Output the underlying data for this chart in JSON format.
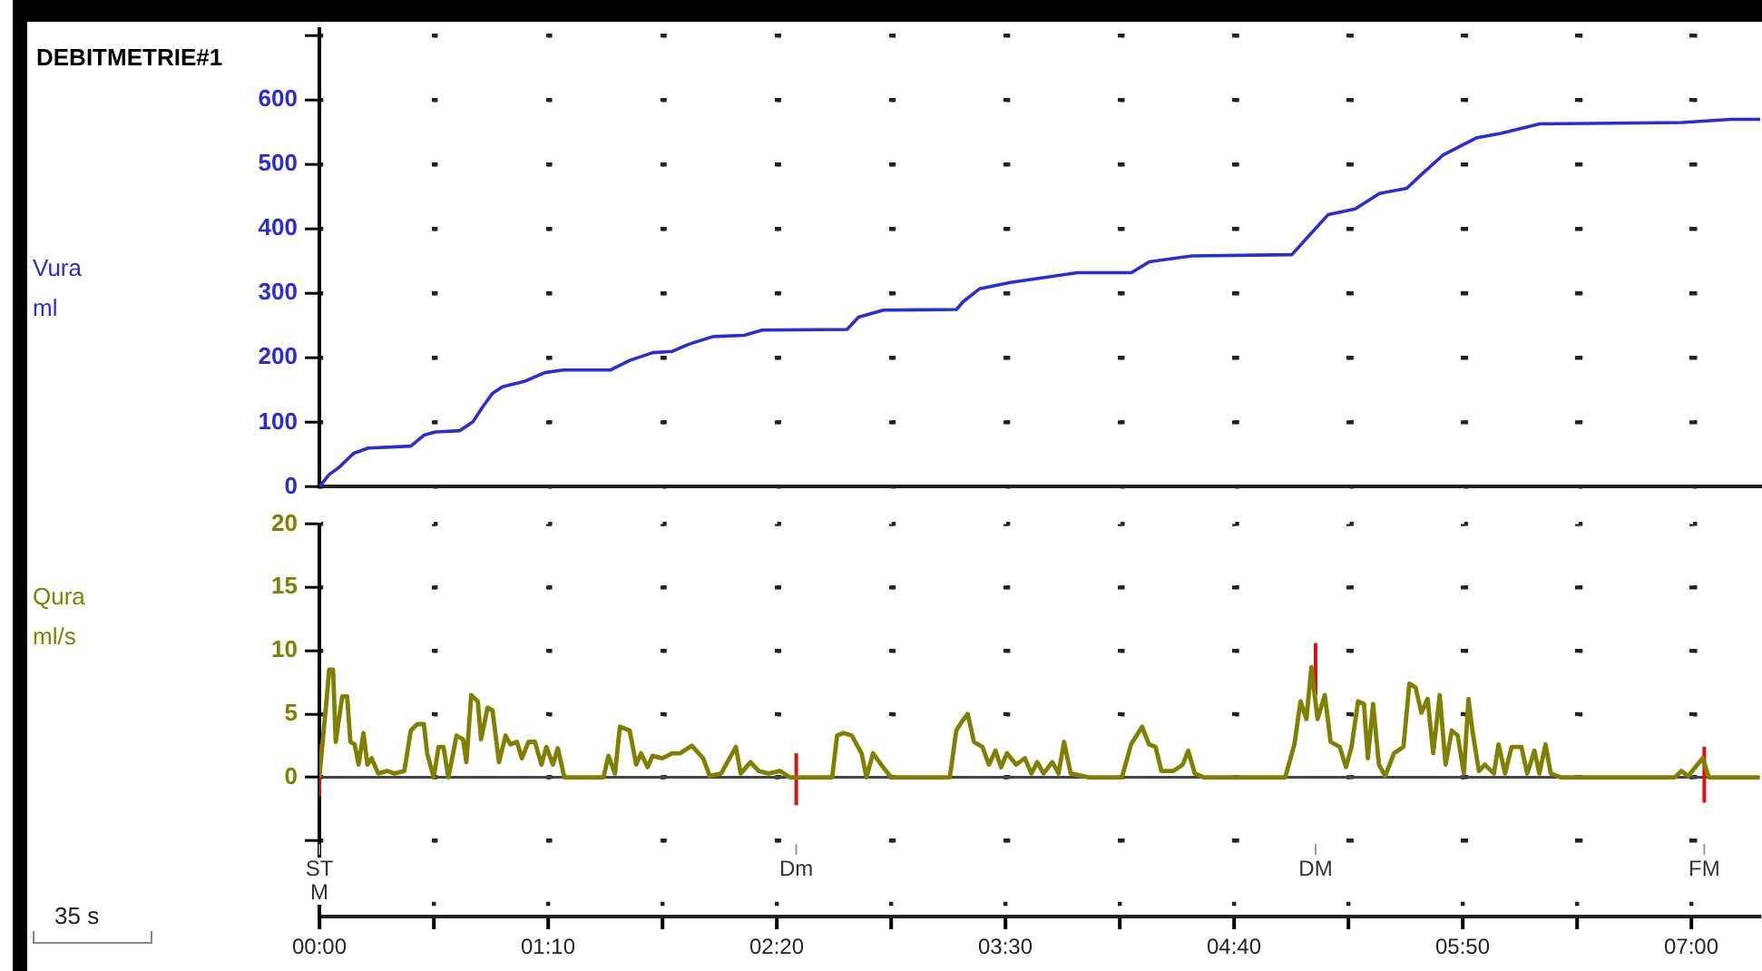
{
  "chart_data": [
    {
      "type": "line",
      "title": "DEBITMETRIE#1",
      "ylabel": "Vura ml",
      "color": "#2b2bd9",
      "marker": "none",
      "grid": true,
      "tick_labels": "y",
      "x": [
        0,
        3,
        6,
        10.5,
        15,
        28,
        32,
        35.5,
        43,
        47,
        50,
        53,
        56,
        63,
        69,
        74.5,
        89,
        95,
        102,
        108,
        113,
        120.5,
        130,
        135.5,
        161.5,
        165,
        172.6,
        195,
        197,
        202,
        211.5,
        232,
        248.5,
        254,
        267,
        297.6,
        308.7,
        317,
        324.4,
        332.8,
        337.4,
        344,
        354,
        361.5,
        373.5,
        417,
        432,
        441
      ],
      "values": [
        0,
        19,
        30,
        52,
        60,
        63,
        80,
        85,
        87,
        101,
        124,
        145,
        155,
        164,
        177,
        181,
        181,
        196,
        208,
        210,
        221,
        233,
        235,
        243,
        244,
        263,
        274,
        275,
        287,
        307,
        317,
        332,
        332,
        349,
        358,
        360,
        422,
        431,
        455,
        463,
        485,
        515,
        541,
        548,
        563,
        565,
        570,
        570
      ],
      "xlim": [
        0,
        441
      ],
      "xticks": [
        {
          "value": 0,
          "label": null
        },
        {
          "value": 35,
          "label": null
        },
        {
          "value": 70,
          "label": null
        },
        {
          "value": 105,
          "label": null
        },
        {
          "value": 140,
          "label": null
        },
        {
          "value": 175,
          "label": null
        },
        {
          "value": 210,
          "label": null
        },
        {
          "value": 245,
          "label": null
        },
        {
          "value": 280,
          "label": null
        },
        {
          "value": 315,
          "label": null
        },
        {
          "value": 350,
          "label": null
        },
        {
          "value": 385,
          "label": null
        },
        {
          "value": 420,
          "label": null
        }
      ],
      "ylim": [
        0,
        710
      ],
      "yticks": [
        0,
        100,
        200,
        300,
        400,
        500,
        600,
        {
          "value": 700,
          "label": null
        }
      ]
    },
    {
      "type": "line",
      "ylabel": "Qura ml/s",
      "marker": "none",
      "grid": true,
      "series": [
        {
          "color": "#808000",
          "x": [
            0,
            1.5,
            2,
            3,
            4.2,
            5,
            7,
            8.5,
            9.5,
            10.8,
            12,
            13.5,
            14.7,
            16,
            18,
            20.7,
            23,
            26,
            28,
            30,
            32,
            33,
            35,
            36.5,
            38,
            39.5,
            42,
            44,
            45,
            46.5,
            48.5,
            49.5,
            51.5,
            53,
            55,
            57,
            58.5,
            60.5,
            62,
            64,
            66,
            68,
            69.5,
            71.5,
            73,
            75,
            87,
            88.5,
            90.5,
            92,
            95,
            97,
            98.5,
            100.5,
            102,
            105,
            108,
            110.5,
            114,
            117.5,
            119.5,
            123,
            127.5,
            129,
            132,
            134.5,
            137.5,
            141,
            144,
            157,
            158.5,
            160.5,
            163,
            166,
            167.5,
            169.5,
            172,
            175,
            193,
            195,
            196.7,
            198.5,
            200.4,
            203,
            205,
            207,
            208.7,
            210.5,
            213.3,
            216,
            218,
            219.8,
            221.7,
            224.4,
            226.3,
            228,
            230,
            235.6,
            245.7,
            248.5,
            251.9,
            254,
            256,
            257.8,
            261.5,
            264.3,
            266,
            268,
            270.7,
            295.7,
            298.5,
            300.4,
            302.2,
            303.7,
            305.6,
            307.8,
            309.6,
            312.4,
            314.3,
            316,
            318,
            319.8,
            321,
            322.6,
            324.4,
            326.3,
            329,
            331.9,
            333.7,
            335.6,
            337.4,
            339.3,
            341,
            343,
            344.8,
            346.7,
            348.5,
            350.4,
            351.8,
            353,
            355,
            356.8,
            359.6,
            361,
            363,
            365,
            368,
            369.8,
            372,
            373.5,
            375.4,
            377,
            380,
            415,
            417,
            419,
            423.5,
            425.4,
            441
          ],
          "values": [
            0,
            4.2,
            5.5,
            8.5,
            8.5,
            2.8,
            6.4,
            6.4,
            2.8,
            2.6,
            1,
            3.5,
            1,
            1.5,
            0.3,
            0.5,
            0.3,
            0.5,
            3.7,
            4.2,
            4.2,
            1.9,
            0,
            2.4,
            2.4,
            0,
            3.3,
            3,
            1.2,
            6.5,
            6,
            3,
            5.5,
            5.3,
            1.2,
            3.3,
            2.6,
            2.8,
            1.5,
            2.8,
            2.8,
            1,
            2.4,
            1,
            2.3,
            0,
            0,
            1.7,
            0.3,
            4,
            3.7,
            1,
            1.9,
            0.8,
            1.7,
            1.5,
            1.9,
            1.9,
            2.5,
            1.5,
            0.1,
            0.3,
            2.4,
            0.3,
            1.2,
            0.5,
            0.3,
            0.5,
            0,
            0,
            3.3,
            3.5,
            3.3,
            1.9,
            0,
            1.9,
            1,
            0,
            0,
            3.7,
            4.4,
            5,
            2.8,
            2.4,
            1,
            2.1,
            0.8,
            1.9,
            1,
            1.5,
            0.3,
            1.2,
            0.3,
            1.2,
            0.3,
            2.8,
            0.3,
            0,
            0,
            2.6,
            4,
            2.6,
            2.4,
            0.5,
            0.5,
            1,
            2.1,
            0.3,
            0,
            0,
            2.6,
            6,
            4.6,
            8.7,
            4.6,
            6.5,
            2.8,
            2.4,
            0.8,
            2.4,
            6,
            5.8,
            1.5,
            5.8,
            1,
            0.1,
            1.9,
            2.4,
            7.4,
            7.1,
            5.1,
            6.2,
            1.9,
            6.5,
            1,
            3.7,
            3.3,
            0.3,
            6.2,
            3.7,
            0.5,
            1,
            0.3,
            2.6,
            0.3,
            2.4,
            2.4,
            0.3,
            2.1,
            0.3,
            2.6,
            0.3,
            0,
            0,
            0.5,
            0.1,
            1.5,
            0,
            0
          ]
        },
        {
          "color": "#e01010",
          "x": [
            0,
            0
          ],
          "values": [
            -1.5,
            2.6
          ]
        },
        {
          "color": "#e01010",
          "x": [
            146,
            146
          ],
          "values": [
            -2.2,
            1.9
          ]
        },
        {
          "color": "#e01010",
          "x": [
            305,
            305
          ],
          "values": [
            6.5,
            10.6
          ]
        },
        {
          "color": "#e01010",
          "x": [
            424,
            424
          ],
          "values": [
            -2,
            2.4
          ]
        }
      ],
      "xlim": [
        0,
        441
      ],
      "xticks": [
        {
          "value": 0,
          "label": "00:00"
        },
        {
          "value": 35,
          "label": null
        },
        {
          "value": 70,
          "label": "01:10"
        },
        {
          "value": 105,
          "label": null
        },
        {
          "value": 140,
          "label": "02:20"
        },
        {
          "value": 175,
          "label": null
        },
        {
          "value": 210,
          "label": "03:30"
        },
        {
          "value": 245,
          "label": null
        },
        {
          "value": 280,
          "label": "04:40"
        },
        {
          "value": 315,
          "label": null
        },
        {
          "value": 350,
          "label": "05:50"
        },
        {
          "value": 385,
          "label": null
        },
        {
          "value": 420,
          "label": "07:00"
        }
      ],
      "ylim": [
        -11,
        20
      ],
      "yticks": [
        {
          "value": -5,
          "label": null
        },
        0,
        5,
        10,
        15,
        20
      ],
      "annotations": [
        {
          "text": "ST M",
          "x": 0
        },
        {
          "text": "Dm",
          "x": 146
        },
        {
          "text": "DM",
          "x": 305
        },
        {
          "text": "FM",
          "x": 424
        },
        "35 s"
      ]
    }
  ]
}
